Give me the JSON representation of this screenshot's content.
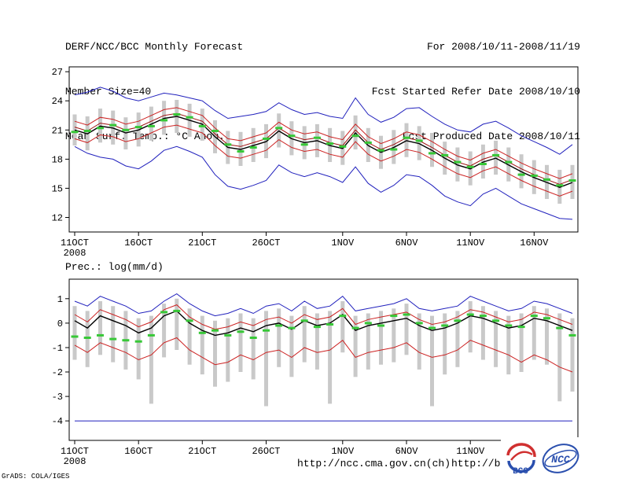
{
  "header": {
    "left": [
      "DERF/NCC/BCC Monthly Forecast",
      "Member Size=40",
      "Mean Surf. Temp.: °C Anom."
    ],
    "right": [
      "For 2008/10/11-2008/11/19",
      "Fcst Started Refer Date 2008/10/10",
      "Fcst Produced Date 2008/10/11"
    ]
  },
  "footer": {
    "url_ncc": "http://ncc.cma.gov.cn(ch)",
    "url_bcc": "http://bcc.c",
    "grads": "GrADS: COLA/IGES",
    "logos": [
      {
        "name": "bcc-logo",
        "label": "BCC"
      },
      {
        "name": "ncc-logo",
        "label": "NCC"
      }
    ]
  },
  "colors": {
    "ensemble_extreme": "#2121bd",
    "spread_band": "#cc2222",
    "control_run": "#a01010",
    "ensemble_mean": "#000000",
    "observation_dash": "#37c837",
    "member_bars": "#c9c9c9"
  },
  "chart_data": [
    {
      "id": "temp",
      "type": "line",
      "title": "Mean Surf. Temp.: °C Anom.",
      "xlabel": "",
      "ylabel": "",
      "ylim": [
        10.5,
        27.5
      ],
      "yticks": [
        27,
        24,
        21,
        18,
        15,
        12
      ],
      "n_days": 40,
      "grid": false,
      "legend": false,
      "xticks": [
        {
          "day": 0,
          "label": "11OCT",
          "sub": "2008"
        },
        {
          "day": 5,
          "label": "16OCT"
        },
        {
          "day": 10,
          "label": "21OCT"
        },
        {
          "day": 15,
          "label": "26OCT"
        },
        {
          "day": 21,
          "label": "1NOV"
        },
        {
          "day": 26,
          "label": "6NOV"
        },
        {
          "day": 31,
          "label": "11NOV"
        },
        {
          "day": 36,
          "label": "16NOV"
        }
      ],
      "series": [
        {
          "name": "ensemble-max",
          "color": "#2121bd",
          "width": 1,
          "values": [
            24.6,
            24.9,
            25.4,
            25.0,
            24.3,
            24.0,
            24.4,
            24.8,
            24.6,
            24.3,
            24.0,
            23.0,
            22.2,
            22.4,
            22.6,
            22.9,
            23.8,
            23.1,
            22.6,
            22.8,
            22.4,
            22.2,
            24.3,
            22.6,
            21.8,
            22.3,
            23.2,
            23.3,
            22.4,
            21.6,
            21.0,
            20.8,
            21.6,
            21.9,
            21.2,
            20.4,
            19.8,
            19.2,
            18.5,
            19.5
          ]
        },
        {
          "name": "upper-spread",
          "color": "#cc2222",
          "width": 1,
          "values": [
            21.9,
            21.5,
            22.3,
            22.1,
            21.6,
            21.9,
            22.5,
            23.1,
            23.3,
            22.9,
            22.5,
            21.2,
            20.1,
            19.9,
            20.3,
            20.7,
            21.8,
            21.0,
            20.6,
            20.8,
            20.3,
            20.0,
            21.6,
            20.3,
            19.6,
            20.1,
            20.8,
            20.5,
            19.8,
            19.0,
            18.3,
            17.9,
            18.6,
            19.0,
            18.3,
            17.6,
            17.0,
            16.5,
            16.0,
            16.5
          ]
        },
        {
          "name": "control-run",
          "color": "#a01010",
          "width": 1,
          "values": [
            21.3,
            20.9,
            21.7,
            21.5,
            21.0,
            21.3,
            21.9,
            22.5,
            22.7,
            22.3,
            21.9,
            20.6,
            19.5,
            19.3,
            19.7,
            20.1,
            21.2,
            20.4,
            20.0,
            20.2,
            19.7,
            19.4,
            21.0,
            19.7,
            19.0,
            19.5,
            20.2,
            19.9,
            19.2,
            18.4,
            17.7,
            17.3,
            18.0,
            18.4,
            17.7,
            17.0,
            16.4,
            15.9,
            15.4,
            15.9
          ]
        },
        {
          "name": "ensemble-mean",
          "color": "#000000",
          "width": 1.4,
          "values": [
            21.0,
            20.6,
            21.4,
            21.2,
            20.7,
            21.0,
            21.6,
            22.2,
            22.4,
            22.0,
            21.6,
            20.3,
            19.2,
            19.0,
            19.4,
            19.8,
            20.9,
            20.1,
            19.7,
            19.9,
            19.4,
            19.1,
            20.7,
            19.4,
            18.7,
            19.2,
            19.9,
            19.6,
            18.9,
            18.1,
            17.4,
            17.0,
            17.7,
            18.1,
            17.4,
            16.7,
            16.1,
            15.6,
            15.1,
            15.6
          ]
        },
        {
          "name": "lower-spread",
          "color": "#cc2222",
          "width": 1,
          "values": [
            20.1,
            19.7,
            20.5,
            20.3,
            19.8,
            20.1,
            20.7,
            21.3,
            21.5,
            21.1,
            20.7,
            19.4,
            18.3,
            18.1,
            18.5,
            18.9,
            20.0,
            19.2,
            18.8,
            19.0,
            18.5,
            18.2,
            19.8,
            18.5,
            17.8,
            18.3,
            19.0,
            18.7,
            18.0,
            17.2,
            16.5,
            16.1,
            16.8,
            17.2,
            16.5,
            15.8,
            15.2,
            14.7,
            14.2,
            14.7
          ]
        },
        {
          "name": "ensemble-min",
          "color": "#2121bd",
          "width": 1,
          "values": [
            19.3,
            18.6,
            18.2,
            18.0,
            17.3,
            17.0,
            17.8,
            18.9,
            19.3,
            18.8,
            18.2,
            16.4,
            15.2,
            14.9,
            15.3,
            15.8,
            17.4,
            16.6,
            16.2,
            16.6,
            16.2,
            15.6,
            17.2,
            15.5,
            14.6,
            15.3,
            16.4,
            16.2,
            15.3,
            14.2,
            13.6,
            13.2,
            14.4,
            15.0,
            14.2,
            13.4,
            12.9,
            12.4,
            11.9,
            11.8
          ]
        }
      ],
      "bars": {
        "name": "member-spread",
        "color": "#c9c9c9",
        "hi": [
          22.6,
          22.4,
          23.2,
          23.0,
          22.3,
          22.8,
          23.4,
          24.0,
          24.1,
          23.7,
          23.2,
          22.0,
          20.9,
          20.8,
          21.2,
          21.6,
          22.7,
          21.9,
          21.4,
          21.6,
          21.2,
          20.9,
          22.5,
          21.2,
          20.4,
          21.0,
          21.7,
          21.4,
          20.7,
          19.8,
          19.2,
          18.8,
          19.5,
          19.9,
          19.2,
          18.5,
          17.9,
          17.4,
          16.9,
          17.4
        ],
        "lo": [
          19.4,
          18.9,
          19.7,
          19.5,
          19.0,
          19.3,
          19.9,
          20.5,
          20.7,
          20.3,
          19.9,
          18.6,
          17.5,
          17.3,
          17.7,
          18.1,
          19.2,
          18.4,
          18.0,
          18.2,
          17.7,
          17.4,
          19.0,
          17.7,
          17.0,
          17.5,
          18.2,
          17.9,
          17.2,
          16.4,
          15.7,
          15.3,
          16.0,
          16.4,
          15.7,
          15.0,
          14.4,
          13.9,
          13.4,
          13.9
        ]
      },
      "dashes": {
        "name": "observation",
        "color": "#37c837",
        "values": [
          20.8,
          20.9,
          21.2,
          21.5,
          21.0,
          21.3,
          21.4,
          22.0,
          22.6,
          22.3,
          21.4,
          20.9,
          19.5,
          18.8,
          19.2,
          20.1,
          21.2,
          20.4,
          19.5,
          20.2,
          19.6,
          19.3,
          20.4,
          19.7,
          18.9,
          19.0,
          20.2,
          19.9,
          18.6,
          18.4,
          17.7,
          17.2,
          17.5,
          18.4,
          17.7,
          16.4,
          16.3,
          15.9,
          15.3,
          15.8
        ]
      }
    },
    {
      "id": "prec",
      "type": "line",
      "title": "Prec.: log(mm/d)",
      "xlabel": "",
      "ylabel": "",
      "ylim": [
        -4.8,
        1.8
      ],
      "yticks": [
        1,
        0,
        -1,
        -2,
        -3,
        -4
      ],
      "n_days": 40,
      "grid": false,
      "legend": false,
      "xticks": [
        {
          "day": 0,
          "label": "11OCT",
          "sub": "2008"
        },
        {
          "day": 5,
          "label": "16OCT"
        },
        {
          "day": 10,
          "label": "21OCT"
        },
        {
          "day": 15,
          "label": "26OCT"
        },
        {
          "day": 21,
          "label": "1NOV"
        },
        {
          "day": 26,
          "label": "6NOV"
        },
        {
          "day": 31,
          "label": "11NOV"
        },
        {
          "day": 36,
          "label": "16NOV"
        }
      ],
      "series": [
        {
          "name": "ensemble-max",
          "color": "#2121bd",
          "width": 1,
          "values": [
            0.9,
            0.7,
            1.1,
            0.9,
            0.7,
            0.4,
            0.5,
            0.9,
            1.2,
            0.8,
            0.5,
            0.3,
            0.4,
            0.6,
            0.4,
            0.7,
            0.8,
            0.5,
            0.9,
            0.6,
            0.7,
            1.1,
            0.5,
            0.6,
            0.7,
            0.8,
            1.0,
            0.6,
            0.5,
            0.6,
            0.7,
            1.1,
            0.9,
            0.7,
            0.5,
            0.6,
            0.9,
            0.8,
            0.6,
            0.4
          ]
        },
        {
          "name": "upper-spread",
          "color": "#cc2222",
          "width": 1,
          "values": [
            0.35,
            0.05,
            0.55,
            0.35,
            0.15,
            -0.15,
            0.05,
            0.55,
            0.75,
            0.25,
            -0.05,
            -0.25,
            -0.15,
            0.05,
            -0.1,
            0.15,
            0.25,
            0.0,
            0.35,
            0.15,
            0.25,
            0.6,
            -0.05,
            0.15,
            0.25,
            0.35,
            0.45,
            0.15,
            -0.05,
            0.05,
            0.25,
            0.55,
            0.45,
            0.25,
            0.05,
            0.15,
            0.45,
            0.35,
            0.15,
            -0.05
          ]
        },
        {
          "name": "ensemble-mean",
          "color": "#000000",
          "width": 1.4,
          "values": [
            0.1,
            -0.2,
            0.3,
            0.1,
            -0.1,
            -0.4,
            -0.2,
            0.3,
            0.5,
            0.0,
            -0.3,
            -0.5,
            -0.4,
            -0.2,
            -0.35,
            -0.1,
            0.0,
            -0.25,
            0.1,
            -0.1,
            0.0,
            0.35,
            -0.3,
            -0.1,
            0.0,
            0.1,
            0.2,
            -0.1,
            -0.3,
            -0.2,
            0.0,
            0.3,
            0.2,
            0.0,
            -0.2,
            -0.1,
            0.2,
            0.1,
            -0.1,
            -0.3
          ]
        },
        {
          "name": "lower-spread",
          "color": "#cc2222",
          "width": 1,
          "values": [
            -0.9,
            -1.2,
            -0.8,
            -1.0,
            -1.2,
            -1.5,
            -1.3,
            -0.8,
            -0.6,
            -1.1,
            -1.4,
            -1.7,
            -1.6,
            -1.3,
            -1.5,
            -1.2,
            -1.1,
            -1.4,
            -1.0,
            -1.2,
            -1.1,
            -0.7,
            -1.4,
            -1.2,
            -1.1,
            -1.0,
            -0.8,
            -1.2,
            -1.4,
            -1.3,
            -1.1,
            -0.7,
            -0.9,
            -1.1,
            -1.3,
            -1.6,
            -1.3,
            -1.5,
            -1.8,
            -2.0
          ]
        },
        {
          "name": "ensemble-min",
          "color": "#2121bd",
          "width": 1,
          "values": [
            -4,
            -4,
            -4,
            -4,
            -4,
            -4,
            -4,
            -4,
            -4,
            -4,
            -4,
            -4,
            -4,
            -4,
            -4,
            -4,
            -4,
            -4,
            -4,
            -4,
            -4,
            -4,
            -4,
            -4,
            -4,
            -4,
            -4,
            -4,
            -4,
            -4,
            -4,
            -4,
            -4,
            -4,
            -4,
            -4,
            -4,
            -4,
            -4,
            -4
          ]
        }
      ],
      "bars": {
        "name": "member-spread",
        "color": "#c9c9c9",
        "hi": [
          0.7,
          0.5,
          0.9,
          0.7,
          0.5,
          0.2,
          0.3,
          0.8,
          1.0,
          0.6,
          0.3,
          0.1,
          0.2,
          0.4,
          0.2,
          0.5,
          0.6,
          0.3,
          0.7,
          0.4,
          0.5,
          0.9,
          0.3,
          0.4,
          0.5,
          0.6,
          0.8,
          0.4,
          0.3,
          0.4,
          0.5,
          0.9,
          0.7,
          0.5,
          0.3,
          0.4,
          0.7,
          0.6,
          0.4,
          0.2
        ],
        "lo": [
          -1.5,
          -1.8,
          -1.3,
          -1.6,
          -1.9,
          -2.3,
          -3.3,
          -1.4,
          -1.1,
          -1.7,
          -2.1,
          -2.6,
          -2.4,
          -2.0,
          -2.3,
          -3.4,
          -1.8,
          -2.2,
          -1.6,
          -1.9,
          -3.3,
          -1.2,
          -2.2,
          -1.9,
          -1.7,
          -1.6,
          -1.3,
          -1.9,
          -3.4,
          -2.1,
          -1.8,
          -1.2,
          -1.5,
          -1.8,
          -2.1,
          -2.0,
          -1.5,
          -1.7,
          -3.2,
          -2.8
        ]
      },
      "dashes": {
        "name": "observation",
        "color": "#37c837",
        "values": [
          -0.55,
          -0.6,
          -0.5,
          -0.65,
          -0.7,
          -0.75,
          -0.5,
          0.45,
          0.5,
          0.1,
          -0.4,
          -0.3,
          -0.5,
          -0.35,
          -0.6,
          -0.3,
          -0.1,
          -0.2,
          0.1,
          -0.15,
          -0.05,
          0.3,
          -0.2,
          0.0,
          -0.1,
          0.3,
          0.35,
          0.0,
          -0.2,
          -0.1,
          0.1,
          0.35,
          0.3,
          0.1,
          -0.1,
          -0.15,
          0.3,
          0.2,
          -0.2,
          -0.5
        ]
      }
    }
  ]
}
